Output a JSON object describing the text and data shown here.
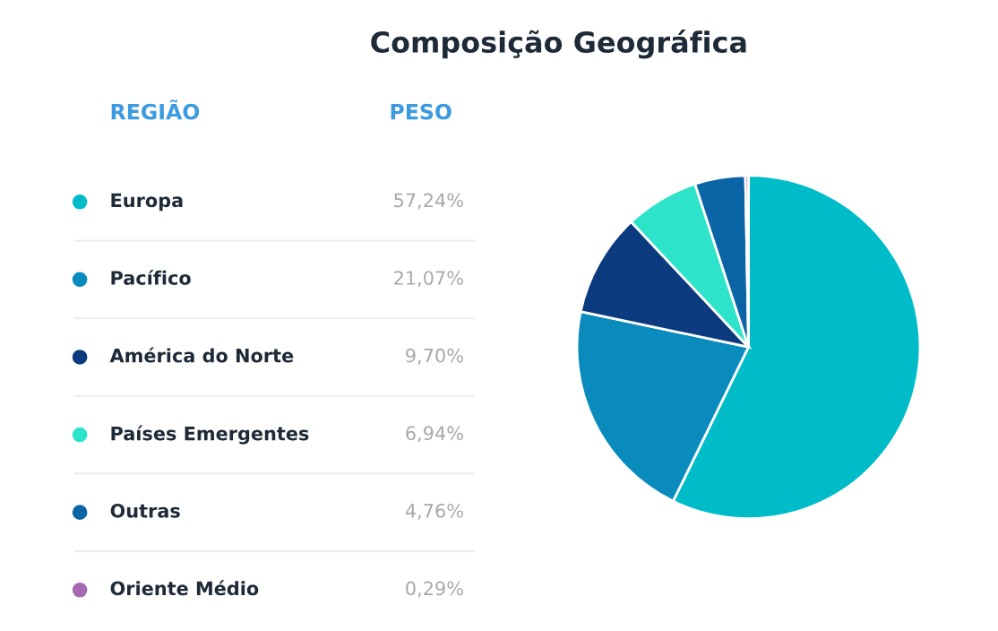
{
  "chart_data": {
    "type": "pie",
    "title": "Composição Geográfica",
    "annotations": [
      "REGIÃO",
      "PESO"
    ],
    "categories": [
      "Europa",
      "Pacífico",
      "América do Norte",
      "Países Emergentes",
      "Outras",
      "Oriente Médio"
    ],
    "values": [
      57.24,
      21.07,
      9.7,
      6.94,
      4.76,
      0.29
    ],
    "value_labels": [
      "57,24%",
      "21,07%",
      "9,70%",
      "6,94%",
      "4,76%",
      "0,29%"
    ],
    "colors": [
      "#00bcc8",
      "#0a8bbd",
      "#0b3a7e",
      "#2de3c9",
      "#0b64a6",
      "#a569b3"
    ],
    "legend": "left"
  }
}
